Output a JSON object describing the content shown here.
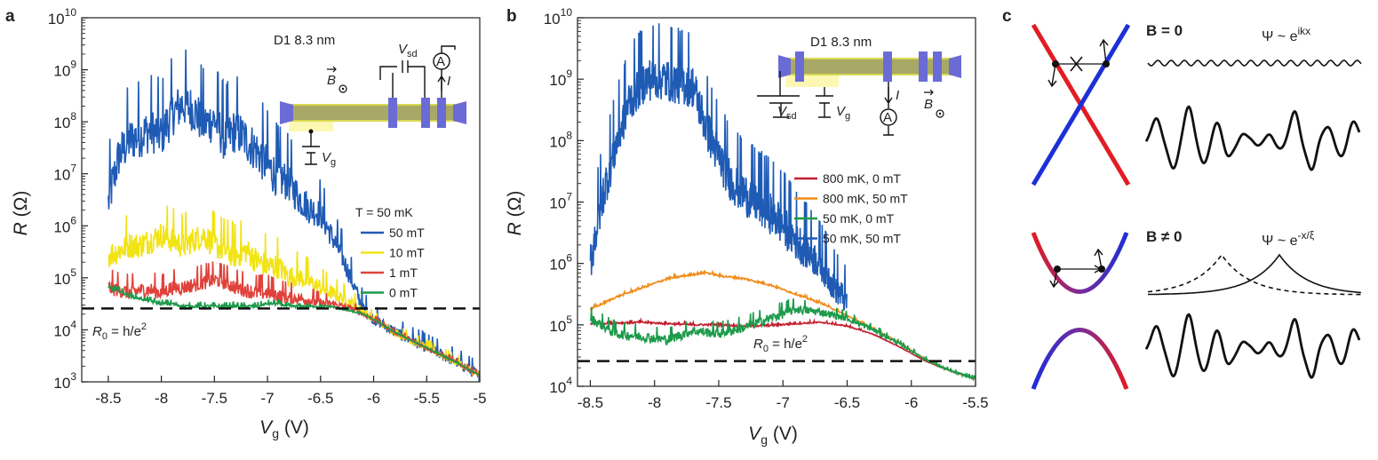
{
  "chart_data": [
    {
      "panel": "a",
      "type": "line",
      "xlabel": "V",
      "xlabel_sub": "g",
      "xlabel_unit": "(V)",
      "ylabel": "R",
      "ylabel_unit": "(Ω)",
      "xlim": [
        -8.75,
        -5.0
      ],
      "ylim_log10": [
        3,
        10
      ],
      "y_scale": "log",
      "xticks": [
        -8.5,
        -8,
        -7.5,
        -7,
        -6.5,
        -6,
        -5.5,
        -5
      ],
      "xtick_labels": [
        "-8.5",
        "-8",
        "-7.5",
        "-7",
        "-6.5",
        "-6",
        "-5.5",
        "-5"
      ],
      "yticks_log10": [
        3,
        4,
        5,
        6,
        7,
        8,
        9,
        10
      ],
      "ytick_labels": [
        "10^3",
        "10^4",
        "10^5",
        "10^6",
        "10^7",
        "10^8",
        "10^9",
        "10^10"
      ],
      "legend_title": "T = 50 mK",
      "legend_position": "right",
      "device_label": "D1 8.3 nm",
      "reference_line": {
        "label": "R",
        "label_sub": "0",
        "label_rest": "= h/e",
        "label_sup": "2",
        "log10_value": 4.41
      },
      "inset_labels": {
        "field": "B",
        "vsd": "V",
        "vsd_sub": "sd",
        "vg": "V",
        "vg_sub": "g",
        "current": "I",
        "ammeter": "A"
      },
      "series": [
        {
          "name": "50 mT",
          "color": "#1f5bb5",
          "x": [
            -8.5,
            -8.4,
            -8.3,
            -8.2,
            -8.1,
            -8.0,
            -7.9,
            -7.8,
            -7.7,
            -7.6,
            -7.5,
            -7.4,
            -7.3,
            -7.2,
            -7.1,
            -7.0,
            -6.9,
            -6.8,
            -6.7,
            -6.6,
            -6.5,
            -6.4,
            -6.3,
            -6.2,
            -6.1,
            -6.0,
            -5.8,
            -5.6,
            -5.4,
            -5.2,
            -5.0
          ],
          "y_log10": [
            6.4,
            7.3,
            7.6,
            7.7,
            7.8,
            7.7,
            8.1,
            8.3,
            8.2,
            7.9,
            8.0,
            7.6,
            7.8,
            7.6,
            7.4,
            7.1,
            6.9,
            6.8,
            6.5,
            6.3,
            6.2,
            5.8,
            5.4,
            4.9,
            4.4,
            4.2,
            3.95,
            3.75,
            3.55,
            3.35,
            3.1
          ],
          "noise": 0.55
        },
        {
          "name": "10 mT",
          "color": "#f2e313",
          "x": [
            -8.5,
            -8.4,
            -8.3,
            -8.2,
            -8.1,
            -8.0,
            -7.9,
            -7.8,
            -7.7,
            -7.6,
            -7.5,
            -7.4,
            -7.3,
            -7.2,
            -7.1,
            -7.0,
            -6.9,
            -6.8,
            -6.7,
            -6.6,
            -6.5,
            -6.4,
            -6.3,
            -6.2,
            -6.1,
            -6.0,
            -5.8,
            -5.6,
            -5.4,
            -5.2,
            -5.0
          ],
          "y_log10": [
            5.4,
            5.5,
            5.6,
            5.6,
            5.7,
            5.8,
            5.7,
            5.6,
            5.7,
            5.8,
            5.6,
            5.5,
            5.4,
            5.5,
            5.3,
            5.2,
            5.2,
            5.0,
            5.0,
            4.9,
            4.8,
            4.7,
            4.6,
            4.5,
            4.35,
            4.2,
            3.95,
            3.75,
            3.55,
            3.35,
            3.12
          ],
          "noise": 0.32
        },
        {
          "name": "1 mT",
          "color": "#e0413a",
          "x": [
            -8.5,
            -8.4,
            -8.3,
            -8.2,
            -8.1,
            -8.0,
            -7.9,
            -7.8,
            -7.7,
            -7.6,
            -7.5,
            -7.4,
            -7.3,
            -7.2,
            -7.1,
            -7.0,
            -6.9,
            -6.8,
            -6.7,
            -6.6,
            -6.5,
            -6.4,
            -6.3,
            -6.2,
            -6.1,
            -6.0,
            -5.8,
            -5.6,
            -5.4,
            -5.2,
            -5.0
          ],
          "y_log10": [
            4.8,
            4.75,
            4.7,
            4.75,
            4.75,
            4.7,
            4.8,
            4.8,
            4.85,
            4.9,
            4.95,
            4.9,
            4.8,
            4.75,
            4.7,
            4.7,
            4.65,
            4.6,
            4.6,
            4.55,
            4.5,
            4.5,
            4.45,
            4.4,
            4.3,
            4.2,
            3.95,
            3.75,
            3.55,
            3.35,
            3.12
          ],
          "noise": 0.18
        },
        {
          "name": "0 mT",
          "color": "#1d9a4a",
          "x": [
            -8.5,
            -8.4,
            -8.3,
            -8.2,
            -8.1,
            -8.0,
            -7.9,
            -7.8,
            -7.7,
            -7.6,
            -7.5,
            -7.4,
            -7.3,
            -7.2,
            -7.1,
            -7.0,
            -6.9,
            -6.8,
            -6.7,
            -6.6,
            -6.5,
            -6.4,
            -6.3,
            -6.2,
            -6.1,
            -6.0,
            -5.8,
            -5.6,
            -5.4,
            -5.2,
            -5.0
          ],
          "y_log10": [
            4.8,
            4.75,
            4.65,
            4.6,
            4.55,
            4.5,
            4.5,
            4.45,
            4.45,
            4.45,
            4.45,
            4.45,
            4.45,
            4.45,
            4.45,
            4.5,
            4.5,
            4.45,
            4.45,
            4.45,
            4.45,
            4.45,
            4.4,
            4.35,
            4.3,
            4.2,
            3.95,
            3.75,
            3.55,
            3.35,
            3.12
          ],
          "noise": 0.04
        }
      ]
    },
    {
      "panel": "b",
      "type": "line",
      "xlabel": "V",
      "xlabel_sub": "g",
      "xlabel_unit": "(V)",
      "ylabel": "R",
      "ylabel_unit": "(Ω)",
      "xlim": [
        -8.6,
        -5.5
      ],
      "ylim_log10": [
        4,
        10
      ],
      "y_scale": "log",
      "xticks": [
        -8.5,
        -8,
        -7.5,
        -7,
        -6.5,
        -6,
        -5.5
      ],
      "xtick_labels": [
        "-8.5",
        "-8",
        "-7.5",
        "-7",
        "-6.5",
        "-6",
        "-5.5"
      ],
      "yticks_log10": [
        4,
        5,
        6,
        7,
        8,
        9,
        10
      ],
      "ytick_labels": [
        "10^4",
        "10^5",
        "10^6",
        "10^7",
        "10^8",
        "10^9",
        "10^10"
      ],
      "legend_position": "right",
      "device_label": "D1 8.3 nm",
      "reference_line": {
        "label": "R",
        "label_sub": "0",
        "label_rest": "= h/e",
        "label_sup": "2",
        "log10_value": 4.41
      },
      "inset_labels": {
        "field": "B",
        "vsd": "V",
        "vsd_sub": "sd",
        "vg": "V",
        "vg_sub": "g",
        "current": "I",
        "ammeter": "A"
      },
      "series": [
        {
          "name": "800 mK, 0 mT",
          "color": "#c21f2f",
          "x": [
            -8.5,
            -8.3,
            -8.1,
            -7.9,
            -7.7,
            -7.5,
            -7.3,
            -7.1,
            -6.9,
            -6.7,
            -6.5,
            -6.3,
            -6.1,
            -5.9,
            -5.7,
            -5.5
          ],
          "y_log10": [
            5.02,
            5.03,
            5.04,
            5.02,
            5.0,
            5.0,
            4.98,
            4.99,
            5.02,
            5.04,
            4.98,
            4.85,
            4.65,
            4.42,
            4.25,
            4.12
          ],
          "noise": 0.02
        },
        {
          "name": "800 mK, 50 mT",
          "color": "#f08c1a",
          "x": [
            -8.5,
            -8.3,
            -8.1,
            -7.9,
            -7.7,
            -7.6,
            -7.5,
            -7.3,
            -7.1,
            -6.9,
            -6.7,
            -6.5,
            -6.3,
            -6.1,
            -5.9,
            -5.7,
            -5.5
          ],
          "y_log10": [
            5.25,
            5.45,
            5.6,
            5.75,
            5.82,
            5.85,
            5.8,
            5.75,
            5.65,
            5.5,
            5.35,
            5.15,
            4.95,
            4.72,
            4.45,
            4.25,
            4.12
          ],
          "noise": 0.02
        },
        {
          "name": "50 mK, 0 mT",
          "color": "#1d9a4a",
          "x": [
            -8.5,
            -8.3,
            -8.1,
            -7.9,
            -7.7,
            -7.5,
            -7.3,
            -7.1,
            -6.9,
            -6.7,
            -6.5,
            -6.3,
            -6.1,
            -5.9,
            -5.7,
            -5.5
          ],
          "y_log10": [
            5.1,
            4.85,
            4.8,
            4.75,
            4.9,
            4.85,
            4.95,
            5.1,
            5.25,
            5.2,
            5.1,
            4.92,
            4.7,
            4.45,
            4.25,
            4.12
          ],
          "noise": 0.1
        },
        {
          "name": "50 mK, 50 mT",
          "color": "#1f5bb5",
          "x": [
            -8.5,
            -8.4,
            -8.3,
            -8.2,
            -8.1,
            -8.0,
            -7.9,
            -7.8,
            -7.7,
            -7.6,
            -7.5,
            -7.4,
            -7.3,
            -7.2,
            -7.1,
            -7.0,
            -6.9,
            -6.8,
            -6.7,
            -6.6,
            -6.5
          ],
          "y_log10": [
            6.0,
            7.1,
            7.9,
            8.6,
            8.9,
            9.0,
            8.95,
            8.9,
            8.85,
            8.2,
            7.7,
            7.3,
            7.1,
            6.95,
            6.8,
            6.6,
            6.35,
            6.15,
            5.95,
            5.6,
            5.35
          ],
          "noise": 0.45,
          "end_at": -6.5
        }
      ]
    },
    {
      "panel": "c",
      "type": "diagram",
      "sections": [
        {
          "title": "B = 0",
          "wavefunction_text": "Ψ ~ e",
          "wavefunction_sup": "ikx"
        },
        {
          "title": "B ≠ 0",
          "wavefunction_text": "Ψ ~ e",
          "wavefunction_sup": "-x/ξ"
        }
      ]
    }
  ],
  "panel_letters": {
    "a": "a",
    "b": "b",
    "c": "c"
  },
  "colors": {
    "red_band": "#e21c23",
    "blue_band": "#1d2fd6",
    "mixed_band": "#7a2c9a",
    "device": "#a8a867",
    "device_outline": "#e0e060",
    "contact": "#6b6bd6"
  }
}
